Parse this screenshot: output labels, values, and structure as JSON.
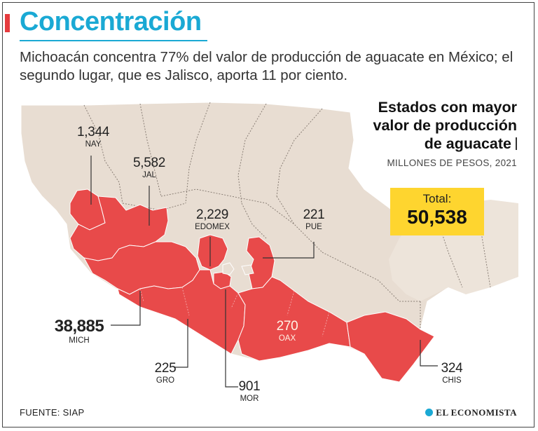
{
  "header": {
    "title": "Concentración",
    "subtitle": "Michoacán concentra 77% del valor de producción de aguacate en México; el segundo lugar, que es Jalisco, aporta 11 por ciento."
  },
  "legend": {
    "heading_line1": "Estados con mayor",
    "heading_line2": "valor de producción",
    "heading_line3": "de aguacate",
    "units": "MILLONES DE PESOS, 2021",
    "total_label": "Total:",
    "total_value": "50,538"
  },
  "states": [
    {
      "abbr": "NAY",
      "value": "1,344"
    },
    {
      "abbr": "JAL",
      "value": "5,582"
    },
    {
      "abbr": "EDOMEX",
      "value": "2,229"
    },
    {
      "abbr": "PUE",
      "value": "221"
    },
    {
      "abbr": "MICH",
      "value": "38,885"
    },
    {
      "abbr": "OAX",
      "value": "270"
    },
    {
      "abbr": "GRO",
      "value": "225"
    },
    {
      "abbr": "MOR",
      "value": "901"
    },
    {
      "abbr": "CHIS",
      "value": "324"
    }
  ],
  "footer": {
    "source": "FUENTE: SIAP",
    "logo": "EL ECONOMISTA"
  },
  "colors": {
    "accent": "#1aa9d4",
    "highlight": "#e84a4a",
    "land": "#e8ddd2",
    "total_box": "#fed52f"
  }
}
